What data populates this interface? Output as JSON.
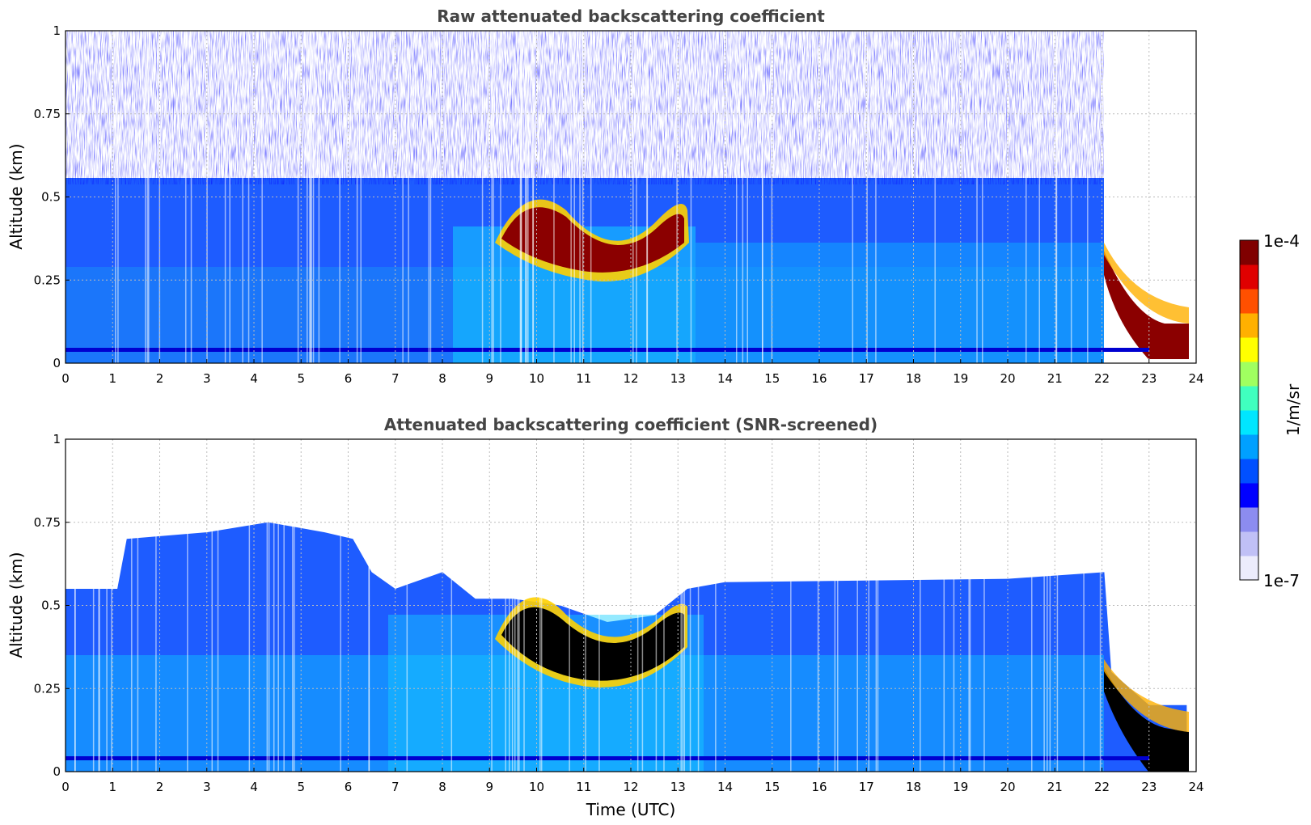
{
  "chart_data": [
    {
      "type": "heatmap",
      "title": "Raw attenuated backscattering coefficient",
      "xlabel": "",
      "ylabel": "Altitude (km)",
      "xlim": [
        0,
        24
      ],
      "ylim": [
        0,
        1
      ],
      "x_ticks": [
        "0",
        "1",
        "2",
        "3",
        "4",
        "5",
        "6",
        "7",
        "8",
        "9",
        "10",
        "11",
        "12",
        "13",
        "14",
        "15",
        "16",
        "17",
        "18",
        "19",
        "20",
        "21",
        "22",
        "23",
        "24"
      ],
      "y_ticks": [
        "0",
        "0.25",
        "0.5",
        "0.75",
        "1"
      ],
      "grid": true,
      "layers": [
        {
          "name": "boundary-layer",
          "x": [
            0,
            22.1
          ],
          "top_km": 0.55
        },
        {
          "name": "noisy-region",
          "x": [
            0,
            22.1
          ],
          "range_km": [
            0.55,
            1.0
          ]
        },
        {
          "name": "cloud",
          "x": [
            9.4,
            13.2
          ],
          "base_km": 0.3,
          "top_km": 0.5
        },
        {
          "name": "descending-cloud",
          "x": [
            22.0,
            23.8
          ],
          "from_km": [
            0.3,
            0.1
          ],
          "to_km": [
            0.05,
            0.0
          ]
        },
        {
          "name": "surface-band",
          "altitude_km": 0.04
        }
      ]
    },
    {
      "type": "heatmap",
      "title": "Attenuated backscattering coefficient (SNR-screened)",
      "xlabel": "Time (UTC)",
      "ylabel": "Altitude (km)",
      "xlim": [
        0,
        24
      ],
      "ylim": [
        0,
        1
      ],
      "x_ticks": [
        "0",
        "1",
        "2",
        "3",
        "4",
        "5",
        "6",
        "7",
        "8",
        "9",
        "10",
        "11",
        "12",
        "13",
        "14",
        "15",
        "16",
        "17",
        "18",
        "19",
        "20",
        "21",
        "22",
        "23",
        "24"
      ],
      "y_ticks": [
        "0",
        "0.25",
        "0.5",
        "0.75",
        "1"
      ],
      "grid": true,
      "layer_top_km": [
        [
          0,
          0.55
        ],
        [
          1.1,
          0.55
        ],
        [
          1.3,
          0.7
        ],
        [
          3,
          0.72
        ],
        [
          4.3,
          0.75
        ],
        [
          5.5,
          0.72
        ],
        [
          6.1,
          0.7
        ],
        [
          6.5,
          0.6
        ],
        [
          7,
          0.55
        ],
        [
          8,
          0.6
        ],
        [
          8.7,
          0.52
        ],
        [
          9.5,
          0.52
        ],
        [
          10.5,
          0.5
        ],
        [
          11.5,
          0.45
        ],
        [
          12.5,
          0.47
        ],
        [
          13.2,
          0.55
        ],
        [
          14,
          0.57
        ],
        [
          20,
          0.58
        ],
        [
          22.05,
          0.6
        ],
        [
          22.2,
          0.3
        ],
        [
          23,
          0.2
        ],
        [
          23.8,
          0.2
        ]
      ],
      "cloud_x": [
        9.3,
        13.2
      ],
      "cloud_km": [
        0.3,
        0.45
      ]
    }
  ],
  "colorbar": {
    "label": "1/m/sr",
    "max_label": "1e-4",
    "min_label": "1e-7",
    "colors": [
      "#ececfc",
      "#c0c0f6",
      "#8c8cf0",
      "#0000ff",
      "#0050ff",
      "#00a0ff",
      "#00e6ff",
      "#40ffbf",
      "#a0ff60",
      "#ffff00",
      "#ffb000",
      "#ff5000",
      "#e00000",
      "#800000"
    ]
  }
}
